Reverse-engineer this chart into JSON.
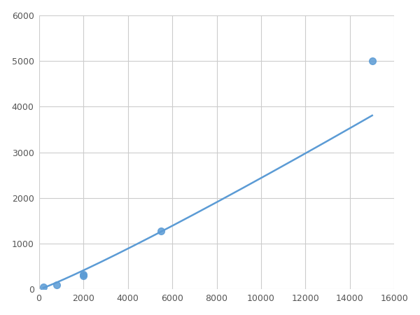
{
  "x": [
    200,
    800,
    2000,
    2000,
    5500,
    15000
  ],
  "y": [
    50,
    100,
    300,
    330,
    1280,
    5000
  ],
  "line_color": "#5B9BD5",
  "marker_color": "#5B9BD5",
  "marker_size": 7,
  "marker_style": "o",
  "linewidth": 1.8,
  "xlim": [
    0,
    16000
  ],
  "ylim": [
    0,
    6000
  ],
  "xticks": [
    0,
    2000,
    4000,
    6000,
    8000,
    10000,
    12000,
    14000,
    16000
  ],
  "yticks": [
    0,
    1000,
    2000,
    3000,
    4000,
    5000,
    6000
  ],
  "grid": true,
  "grid_color": "#CCCCCC",
  "background_color": "#FFFFFF",
  "figsize": [
    6.0,
    4.5
  ],
  "dpi": 100
}
